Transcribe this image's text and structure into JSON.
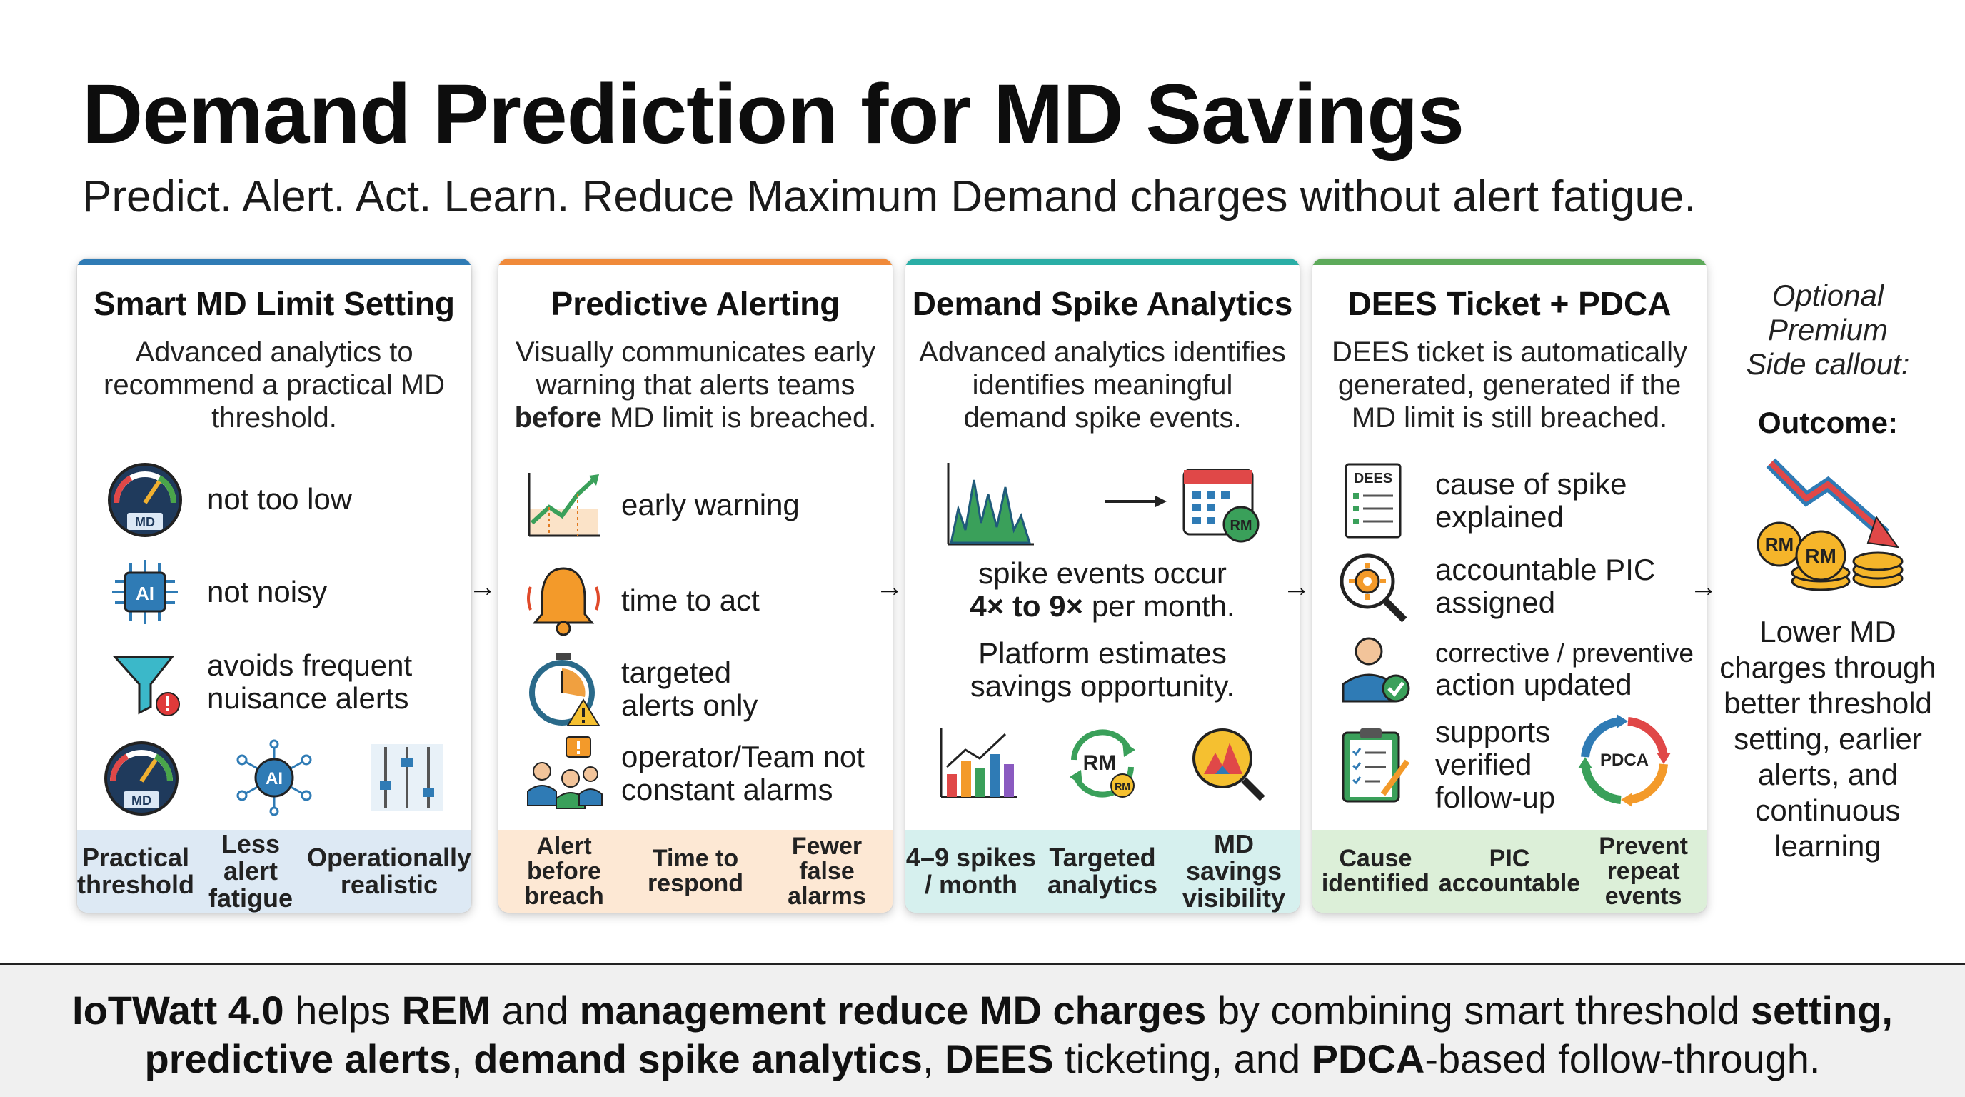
{
  "title": "Demand Prediction for MD Savings",
  "subtitle": "Predict. Alert. Act. Learn. Reduce Maximum Demand charges without alert fatigue.",
  "colors": {
    "card1": "#2f7bb5",
    "card2": "#f08a3a",
    "card3": "#2aaea6",
    "card4": "#5daa5a"
  },
  "cards": [
    {
      "title": "Smart MD Limit Setting",
      "desc": [
        "Advanced analytics to",
        "recommend a practical MD",
        "threshold."
      ],
      "items": [
        {
          "icon": "gauge-icon",
          "label": "not too low"
        },
        {
          "icon": "ai-chip-icon",
          "label": "not noisy"
        },
        {
          "icon": "funnel-alert-icon",
          "label1": "avoids frequent",
          "label2": "nuisance alerts"
        }
      ],
      "bottom_icons": [
        "gauge-icon",
        "ai-network-icon",
        "sliders-icon"
      ],
      "footer": [
        {
          "l1": "Practical",
          "l2": "threshold"
        },
        {
          "l1": "Less alert",
          "l2": "fatigue"
        },
        {
          "l1": "Operationally",
          "l2": "realistic"
        }
      ]
    },
    {
      "title": "Predictive Alerting",
      "desc_1": "Visually communicates early",
      "desc_2": "warning that alerts teams",
      "desc_bold": "before",
      "desc_3": " MD limit is breached.",
      "items": [
        {
          "icon": "trend-chart-icon",
          "label": "early warning"
        },
        {
          "icon": "bell-icon",
          "label": "time to act"
        },
        {
          "icon": "stopwatch-icon",
          "label1": "targeted",
          "label2": "alerts only"
        },
        {
          "icon": "team-alert-icon",
          "label1": "operator/Team not",
          "label2": "constant alarms"
        }
      ],
      "footer": [
        {
          "l1": "Alert before",
          "l2": "breach"
        },
        {
          "l1": "Time to",
          "l2": "respond"
        },
        {
          "l1": "Fewer",
          "l2": "false",
          "l3": "alarms"
        }
      ]
    },
    {
      "title": "Demand Spike Analytics",
      "desc": [
        "Advanced analytics identifies",
        "identifies meaningful",
        "demand spike events."
      ],
      "spike_1": "spike events occur",
      "spike_bold": "4× to 9×",
      "spike_2": " per month.",
      "platform_1": "Platform estimates",
      "platform_2": "savings opportunity.",
      "footer": [
        {
          "l1": "4–9 spikes",
          "l2": "/ month"
        },
        {
          "l1": "Targeted",
          "l2": "analytics"
        },
        {
          "l1": "MD savings",
          "l2": "visibility"
        }
      ]
    },
    {
      "title": "DEES Ticket + PDCA",
      "desc": [
        "DEES ticket is automatically",
        "generated, generated if the",
        "MD limit is still breached."
      ],
      "items": [
        {
          "icon": "document-icon",
          "label1": "cause of spike",
          "label2": "explained"
        },
        {
          "icon": "magnifier-gear-icon",
          "label1": "accountable PIC",
          "label2": "assigned"
        },
        {
          "icon": "person-check-icon",
          "label1": "corrective / preventive",
          "label2": "action updated"
        },
        {
          "icon": "clipboard-icon",
          "label1": "supports",
          "label2": "verified",
          "label3": "follow-up"
        }
      ],
      "pdca_label": "PDCA",
      "doc_label": "DEES",
      "footer": [
        {
          "l1": "Cause",
          "l2": "identified"
        },
        {
          "l1": "PIC",
          "l2": "accountable"
        },
        {
          "l1": "Prevent",
          "l2": "repeat",
          "l3": "events"
        }
      ]
    }
  ],
  "side": {
    "optional": [
      "Optional",
      "Premium",
      "Side callout:"
    ],
    "outcome": "Outcome:",
    "rm": "RM",
    "result": [
      "Lower MD",
      "charges through",
      "better threshold",
      "setting, earlier",
      "alerts, and",
      "continuous",
      "learning"
    ]
  },
  "icon_labels": {
    "md": "MD",
    "ai": "AI",
    "rm": "RM"
  },
  "bottom": {
    "b1": "IoTWatt 4.0",
    "t1": " helps ",
    "b2": "REM",
    "t2": " and ",
    "b3": "management reduce MD charges",
    "t3": " by combining smart threshold ",
    "b4": "setting,",
    "b5": "predictive alerts",
    "t5": ", ",
    "b6": "demand spike analytics",
    "t6": ", ",
    "b7": "DEES",
    "t7": " ticketing, and ",
    "b8": "PDCA",
    "t8": "-based follow-through."
  }
}
